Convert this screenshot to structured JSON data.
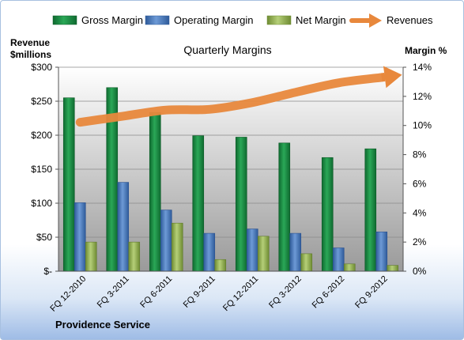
{
  "chart_data": {
    "type": "bar",
    "title": "Quarterly Margins",
    "categories": [
      "FQ 12-2010",
      "FQ 3-2011",
      "FQ 6-2011",
      "FQ 9-2011",
      "FQ 12-2011",
      "FQ 3-2012",
      "FQ 6-2012",
      "FQ 9-2012"
    ],
    "left_axis": {
      "label_line1": "Revenue",
      "label_line2": "$millions",
      "ylim": [
        0,
        300
      ],
      "ticks": [
        "$-",
        "$50",
        "$100",
        "$150",
        "$200",
        "$250",
        "$300"
      ]
    },
    "right_axis": {
      "label": "Margin %",
      "ylim": [
        0,
        14
      ],
      "ticks": [
        "0%",
        "2%",
        "4%",
        "6%",
        "8%",
        "10%",
        "12%",
        "14%"
      ]
    },
    "series": [
      {
        "name": "Gross Margin",
        "axis": "right",
        "color": "#1e8a45",
        "values": [
          11.9,
          12.6,
          10.9,
          9.3,
          9.2,
          8.8,
          7.8,
          8.4
        ]
      },
      {
        "name": "Operating Margin",
        "axis": "right",
        "color": "#4f7fc1",
        "values": [
          4.7,
          6.1,
          4.2,
          2.6,
          2.9,
          2.6,
          1.6,
          2.7
        ]
      },
      {
        "name": "Net Margin",
        "axis": "right",
        "color": "#9bbb59",
        "values": [
          2.0,
          2.0,
          3.3,
          0.8,
          2.4,
          1.2,
          0.5,
          0.4
        ]
      },
      {
        "name": "Revenues",
        "axis": "left",
        "type": "line",
        "color": "#e8883c",
        "values": [
          219,
          228,
          237,
          238,
          248,
          263,
          277,
          285
        ]
      }
    ],
    "grid": true,
    "legend": "top",
    "footer": "Providence Service"
  }
}
